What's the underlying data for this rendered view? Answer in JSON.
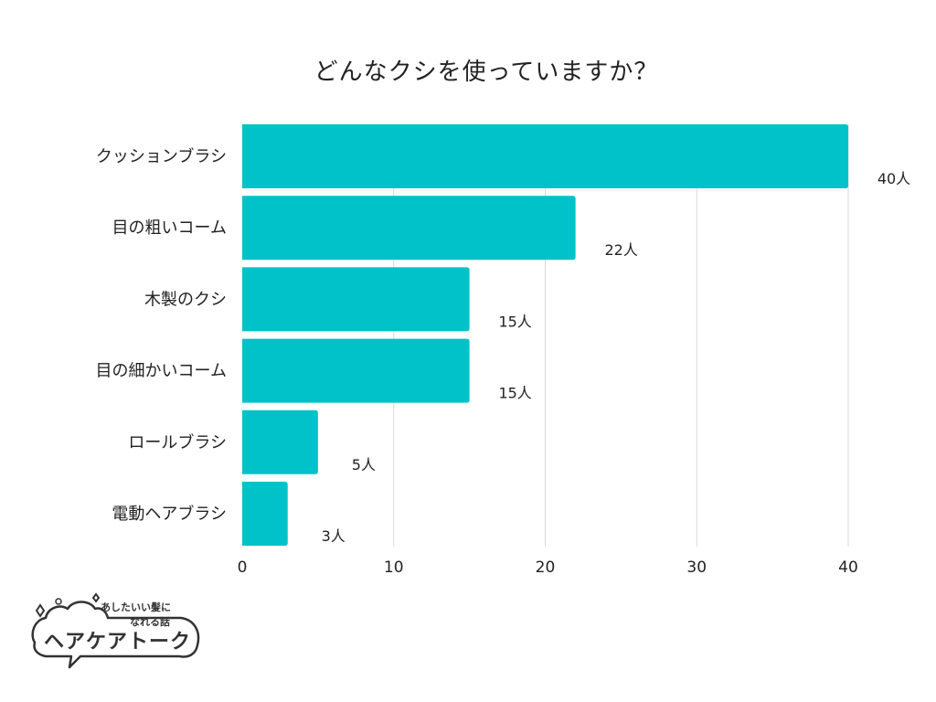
{
  "chart_data": {
    "type": "bar",
    "orientation": "horizontal",
    "title": "どんなクシを使っていますか？",
    "categories": [
      "クッションブラシ",
      "目の粗いコーム",
      "木製のクシ",
      "目の細かいコーム",
      "ロールブラシ",
      "電動ヘアブラシ"
    ],
    "values": [
      40,
      22,
      15,
      15,
      5,
      3
    ],
    "data_labels": [
      "40人",
      "22人",
      "15人",
      "15人",
      "5人",
      "3人"
    ],
    "xlim": [
      0,
      40
    ],
    "xticks": [
      0,
      10,
      20,
      30,
      40
    ],
    "xlabel": "",
    "ylabel": "",
    "grid": true,
    "bar_color": "#00C2C8",
    "grid_color": "#D9D9D9"
  },
  "logo": {
    "tagline_line1": "あしたいい髪に",
    "tagline_line2": "なれる話",
    "name": "ヘアケアトーク"
  }
}
